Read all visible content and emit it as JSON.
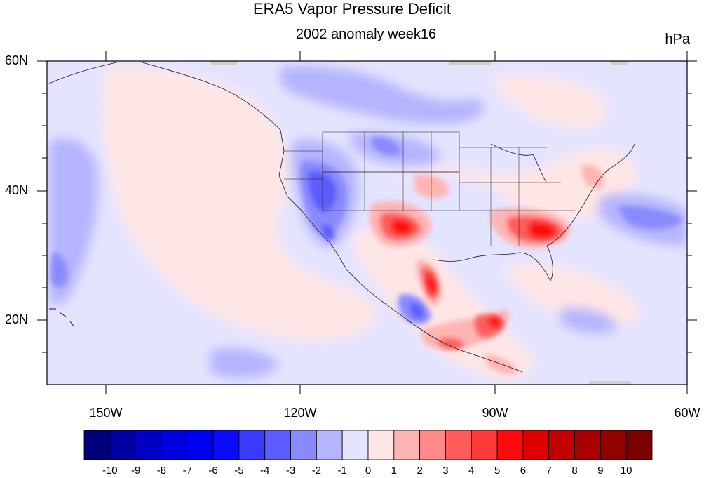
{
  "title": "ERA5 Vapor Pressure Deficit",
  "subtitle": "2002 anomaly week16",
  "units": "hPa",
  "map": {
    "lat_labels": [
      "60N",
      "40N",
      "20N"
    ],
    "lon_labels": [
      "150W",
      "120W",
      "90W",
      "60W"
    ]
  },
  "colorbar": {
    "colors": [
      "#00007a",
      "#0000a3",
      "#0000c2",
      "#0000dc",
      "#0000f0",
      "#0a0aff",
      "#3a3aff",
      "#5c5cff",
      "#8a8aff",
      "#b4b4ff",
      "#e4e4ff",
      "#ffe6e6",
      "#ffb4b4",
      "#ff8a8a",
      "#ff5c5c",
      "#ff3a3a",
      "#ff0a0a",
      "#e00000",
      "#c20000",
      "#a80000",
      "#930000",
      "#7a0000"
    ],
    "ticks": [
      "-10",
      "-9",
      "-8",
      "-7",
      "-6",
      "-5",
      "-4",
      "-3",
      "-2",
      "-1",
      "0",
      "1",
      "2",
      "3",
      "4",
      "5",
      "6",
      "7",
      "8",
      "9",
      "10"
    ]
  }
}
